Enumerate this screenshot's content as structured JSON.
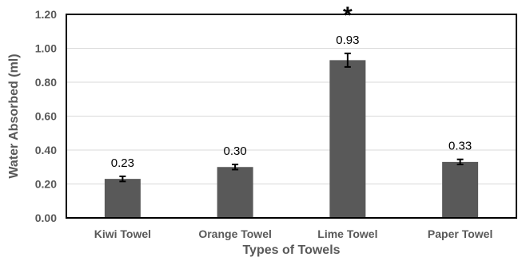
{
  "chart_data": {
    "type": "bar",
    "categories": [
      "Kiwi Towel",
      "Orange Towel",
      "Lime Towel",
      "Paper Towel"
    ],
    "values": [
      0.23,
      0.3,
      0.93,
      0.33
    ],
    "errors": [
      0.015,
      0.015,
      0.04,
      0.015
    ],
    "data_labels": [
      "0.23",
      "0.30",
      "0.93",
      "0.33"
    ],
    "annotations": [
      {
        "category": "Lime Towel",
        "text": "*"
      }
    ],
    "xlabel": "Types of Towels",
    "ylabel": "Water Absorbed (ml)",
    "ylim": [
      0,
      1.2
    ],
    "yticks": [
      "0.00",
      "0.20",
      "0.40",
      "0.60",
      "0.80",
      "1.00",
      "1.20"
    ],
    "grid": true,
    "colors": {
      "bar": "#595959",
      "grid": "#d9d9d9",
      "axis": "#000000",
      "error": "#000000"
    }
  }
}
